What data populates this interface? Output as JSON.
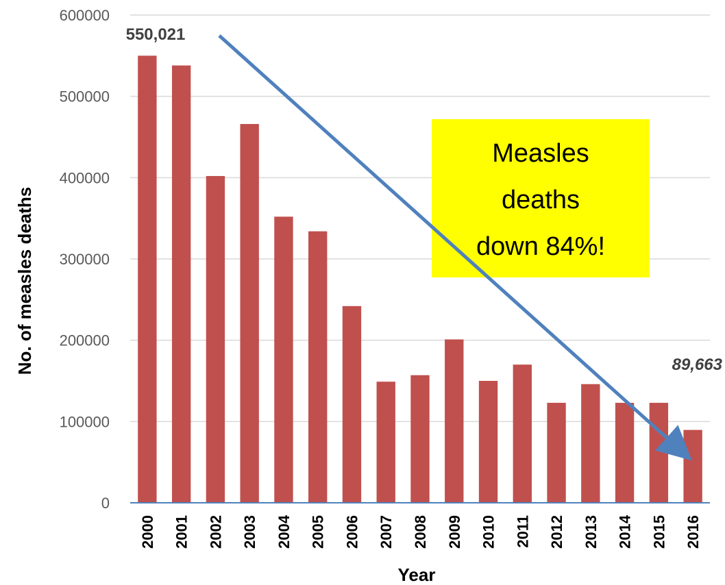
{
  "chart_data": {
    "type": "bar",
    "categories": [
      "2000",
      "2001",
      "2002",
      "2003",
      "2004",
      "2005",
      "2006",
      "2007",
      "2008",
      "2009",
      "2010",
      "2011",
      "2012",
      "2013",
      "2014",
      "2015",
      "2016"
    ],
    "values": [
      550021,
      538000,
      402000,
      466000,
      352000,
      334000,
      242000,
      149000,
      157000,
      201000,
      150000,
      170000,
      123000,
      146000,
      123000,
      123000,
      89663
    ],
    "title": "",
    "xlabel": "Year",
    "ylabel": "No. of measles deaths",
    "ylim": [
      0,
      600000
    ],
    "yticks": [
      "0",
      "100000",
      "200000",
      "300000",
      "400000",
      "500000",
      "600000"
    ],
    "gridlines": true,
    "bar_color": "#c0504d",
    "arrow_color": "#4f81bd",
    "annotations": {
      "start_label": "550,021",
      "end_label": "89,663",
      "callout": [
        "Measles",
        "deaths",
        "down 84%!"
      ],
      "callout_color": "#ffff00"
    }
  }
}
